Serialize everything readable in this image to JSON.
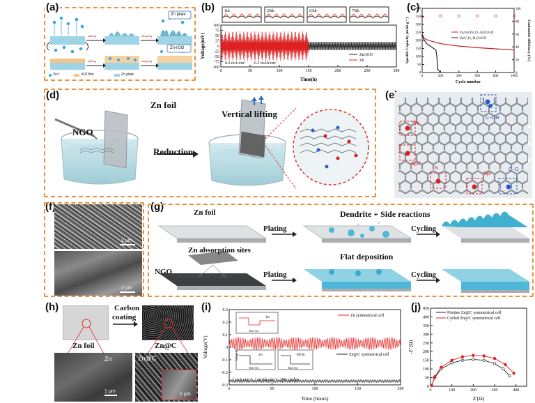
{
  "panels": {
    "a": {
      "label": "(a)",
      "top_title": "Zn plate",
      "bottom_title": "Zn-rGO",
      "legend": [
        "Zn²⁺",
        "rGO film",
        "Zn plate"
      ],
      "arrow_top": "plating",
      "arrow_top2": "stripping",
      "arrow_bottom": "plating",
      "arrow_bottom2": "stripping"
    },
    "b": {
      "label": "(b)",
      "inset_labels": [
        "1th",
        "25th",
        "63th",
        "75th"
      ],
      "ylabel": "Voltage(mV)",
      "xlabel": "Time(h)",
      "annotation1": "0.2 mA/cm²",
      "annotation2": "0.2 mAh/cm²",
      "legend": [
        "Zn/rGO",
        "Zn"
      ],
      "colors": {
        "zn_rgo": "#222222",
        "zn": "#e02020"
      }
    },
    "c": {
      "label": "(c)",
      "ylabel_left": "Specific Capacity (mAh g⁻¹)",
      "ylabel_right": "Coulombic efficiency (%)",
      "xlabel": "Cycle number",
      "legend": [
        "Zn/rGO|V₂O₅·H₂O/rGO",
        "Zn|V₂O₅·H₂O/rGO"
      ]
    },
    "d": {
      "label": "(d)",
      "texts": {
        "zn_foil": "Zn foil",
        "vertical_lifting": "Vertical lifting",
        "ngo": "NGO",
        "reduction": "Reduction"
      }
    },
    "e": {
      "label": "(e)",
      "texts": {
        "coh": "C−OH",
        "nq": "Nq",
        "npd": "Npd",
        "n": "N",
        "npr": "Npr",
        "co": "C−O"
      }
    },
    "f": {
      "label": "(f)",
      "scale_top": "2 μm",
      "scale_bottom": "2 μm"
    },
    "g": {
      "label": "(g)",
      "texts": {
        "zn_foil": "Zn foil",
        "plating1": "Plating",
        "dendrite": "Dendrite + Side reactions",
        "cycling1": "Cycling",
        "absorption": "Zn absorption sites",
        "ngo": "NGO",
        "plating2": "Plating",
        "flat": "Flat deposition",
        "cycling2": "Cycling"
      }
    },
    "h": {
      "label": "(h)",
      "texts": {
        "carbon": "Carbon",
        "coating": "coating",
        "zn_foil": "Zn foil",
        "znc": "Zn@C",
        "sem_zn": "Zn",
        "sem_znc": "Zn@C",
        "scale1": "1 μm",
        "scale2": "1 μm"
      }
    },
    "i": {
      "label": "(i)",
      "ylabel": "Voltage(V)",
      "xlabel": "Time (hours)",
      "legend1": "Zn symmetrical cell",
      "legend2": "Zn@C symmetrical cell",
      "annotation": "1 mA cm⁻², 1 mAh cm⁻², 100 cycles",
      "inset1": "1st",
      "inset2": "1st",
      "inset3": "100 th",
      "inset_x": "Time (h)",
      "inset_y": "Voltage (V)"
    },
    "j": {
      "label": "(j)",
      "ylabel": "-Z''(Ω)",
      "xlabel": "Z'(Ω)",
      "legend": [
        "Pristine Zn@C symmetrical cell",
        "Cycled Zn@C symmetrical cell"
      ]
    }
  },
  "chart_data": [
    {
      "id": "b",
      "type": "line",
      "title": "",
      "xlabel": "Time(h)",
      "ylabel": "Voltage(mV)",
      "xlim": [
        0,
        300
      ],
      "ylim": [
        -100,
        100
      ],
      "x_ticks": [
        0,
        50,
        100,
        150,
        200,
        250,
        300
      ],
      "y_ticks": [
        -100,
        -75,
        -50,
        -25,
        0,
        25,
        50,
        75,
        100
      ],
      "series": [
        {
          "name": "Zn/rGO",
          "description": "stable ±20 mV oscillation 0–300 h",
          "amplitude_mV": 20,
          "x_range": [
            0,
            300
          ]
        },
        {
          "name": "Zn",
          "description": "±70 mV oscillation until short circuit ~150 h",
          "amplitude_mV": 70,
          "x_range": [
            0,
            150
          ]
        }
      ]
    },
    {
      "id": "c",
      "type": "line",
      "xlabel": "Cycle number",
      "ylabel": "Specific Capacity (mAh g⁻¹)",
      "y2label": "Coulombic efficiency (%)",
      "xlim": [
        0,
        1000
      ],
      "ylim": [
        0,
        400
      ],
      "y2lim": [
        0,
        100
      ],
      "x_ticks": [
        0,
        200,
        400,
        600,
        800,
        1000
      ],
      "y_ticks": [
        0,
        50,
        100,
        150,
        200,
        250,
        300,
        350,
        400
      ],
      "y2_ticks": [
        0,
        20,
        40,
        60,
        80,
        100
      ],
      "series": [
        {
          "name": "Zn/rGO|V₂O₅·H₂O/rGO capacity",
          "x": [
            0,
            20,
            50,
            100,
            200,
            400,
            600,
            800,
            1000
          ],
          "values": [
            240,
            215,
            205,
            195,
            180,
            165,
            155,
            148,
            140
          ]
        },
        {
          "name": "Zn|V₂O₅·H₂O/rGO capacity",
          "x": [
            0,
            20,
            50,
            100,
            150,
            160,
            170,
            200
          ],
          "values": [
            240,
            205,
            180,
            160,
            140,
            100,
            20,
            0
          ]
        },
        {
          "name": "Zn/rGO CE (%)",
          "x": [
            0,
            200,
            400,
            600,
            800,
            1000
          ],
          "values": [
            87,
            88,
            88,
            88,
            88,
            88
          ]
        }
      ]
    },
    {
      "id": "i",
      "type": "line",
      "xlabel": "Time (hours)",
      "ylabel": "Voltage(V)",
      "xlim": [
        0,
        200
      ],
      "ylim": [
        -0.3,
        0.3
      ],
      "x_ticks": [
        0,
        50,
        100,
        150,
        200
      ],
      "y_ticks": [
        -0.3,
        -0.2,
        -0.1,
        0.0,
        0.1,
        0.2,
        0.3
      ],
      "series": [
        {
          "name": "Zn symmetrical cell",
          "description": "noisy oscillation ±0.05 V offset at +0.03 V",
          "amplitude_V": 0.05
        },
        {
          "name": "Zn@C symmetrical cell",
          "description": "small oscillation ±0.02 V around -0.27 V",
          "amplitude_V": 0.02
        }
      ]
    },
    {
      "id": "j",
      "type": "scatter",
      "xlabel": "Z'(Ω)",
      "ylabel": "-Z''(Ω)",
      "xlim": [
        0,
        450
      ],
      "ylim": [
        0,
        450
      ],
      "x_ticks": [
        0,
        100,
        200,
        300,
        400
      ],
      "y_ticks": [
        0,
        50,
        100,
        150,
        200,
        250,
        300,
        350,
        400,
        450
      ],
      "series": [
        {
          "name": "Pristine Zn@C symmetrical cell",
          "x": [
            5,
            20,
            50,
            100,
            150,
            200,
            250,
            300,
            340,
            370
          ],
          "values": [
            5,
            50,
            100,
            135,
            150,
            155,
            150,
            130,
            100,
            60
          ]
        },
        {
          "name": "Cycled Zn@C symmetrical cell",
          "x": [
            5,
            20,
            50,
            100,
            150,
            200,
            250,
            300,
            350,
            390
          ],
          "values": [
            5,
            55,
            110,
            150,
            170,
            178,
            175,
            160,
            125,
            75
          ]
        }
      ]
    }
  ]
}
